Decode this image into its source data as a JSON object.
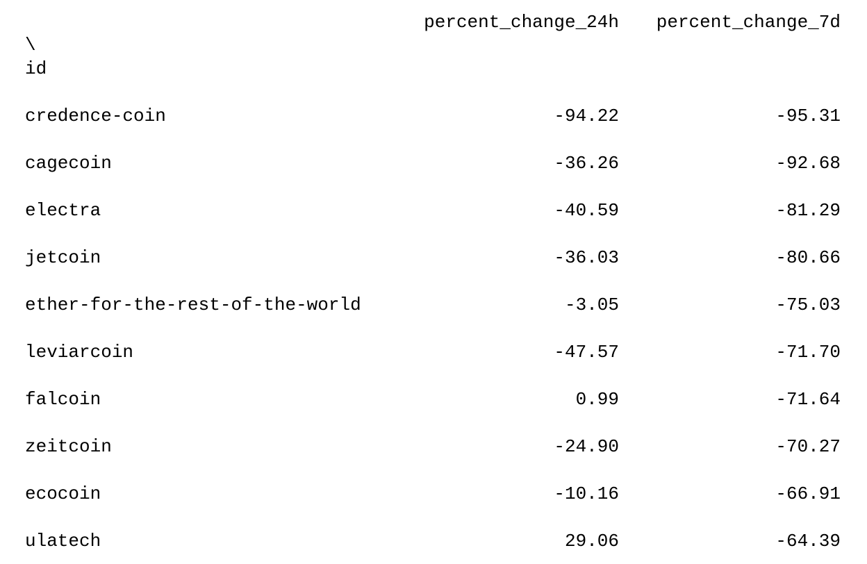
{
  "chart_data": {
    "type": "table",
    "index_label_top": "\\",
    "index_name": "id",
    "columns": [
      "percent_change_24h",
      "percent_change_7d"
    ],
    "rows": [
      {
        "id": "credence-coin",
        "percent_change_24h": "-94.22",
        "percent_change_7d": "-95.31"
      },
      {
        "id": "cagecoin",
        "percent_change_24h": "-36.26",
        "percent_change_7d": "-92.68"
      },
      {
        "id": "electra",
        "percent_change_24h": "-40.59",
        "percent_change_7d": "-81.29"
      },
      {
        "id": "jetcoin",
        "percent_change_24h": "-36.03",
        "percent_change_7d": "-80.66"
      },
      {
        "id": "ether-for-the-rest-of-the-world",
        "percent_change_24h": "-3.05",
        "percent_change_7d": "-75.03"
      },
      {
        "id": "leviarcoin",
        "percent_change_24h": "-47.57",
        "percent_change_7d": "-71.70"
      },
      {
        "id": "falcoin",
        "percent_change_24h": "0.99",
        "percent_change_7d": "-71.64"
      },
      {
        "id": "zeitcoin",
        "percent_change_24h": "-24.90",
        "percent_change_7d": "-70.27"
      },
      {
        "id": "ecocoin",
        "percent_change_24h": "-10.16",
        "percent_change_7d": "-66.91"
      },
      {
        "id": "ulatech",
        "percent_change_24h": "29.06",
        "percent_change_7d": "-64.39"
      }
    ]
  }
}
